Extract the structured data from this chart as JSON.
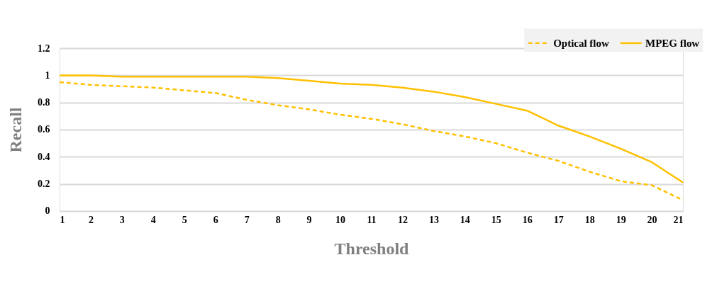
{
  "chart_data": {
    "type": "line",
    "xlabel": "Threshold",
    "ylabel": "Recall",
    "x": [
      1,
      2,
      3,
      4,
      5,
      6,
      7,
      8,
      9,
      10,
      11,
      12,
      13,
      14,
      15,
      16,
      17,
      18,
      19,
      20,
      21
    ],
    "series": [
      {
        "name": "Optical flow",
        "color": "#ffc000",
        "line_style": "dashed",
        "values": [
          0.95,
          0.93,
          0.92,
          0.91,
          0.89,
          0.87,
          0.82,
          0.78,
          0.75,
          0.71,
          0.68,
          0.64,
          0.59,
          0.55,
          0.5,
          0.43,
          0.37,
          0.29,
          0.22,
          0.19,
          0.08
        ]
      },
      {
        "name": "MPEG flow",
        "color": "#ffc000",
        "line_style": "solid",
        "values": [
          1,
          1,
          0.99,
          0.99,
          0.99,
          0.99,
          0.99,
          0.98,
          0.96,
          0.94,
          0.93,
          0.91,
          0.88,
          0.84,
          0.79,
          0.74,
          0.63,
          0.55,
          0.46,
          0.36,
          0.21
        ]
      }
    ],
    "xlim": [
      1,
      21
    ],
    "xticks": [
      1,
      2,
      3,
      4,
      5,
      6,
      7,
      8,
      9,
      10,
      11,
      12,
      13,
      14,
      15,
      16,
      17,
      18,
      19,
      20,
      21
    ],
    "ylim": [
      0,
      1.2
    ],
    "yticks": [
      {
        "value": 0,
        "label": "0"
      },
      0.2,
      0.4,
      0.6,
      0.8,
      {
        "value": 1,
        "label": "1"
      },
      1.2
    ],
    "grid": "y",
    "legend": "top right",
    "marker": "none"
  }
}
